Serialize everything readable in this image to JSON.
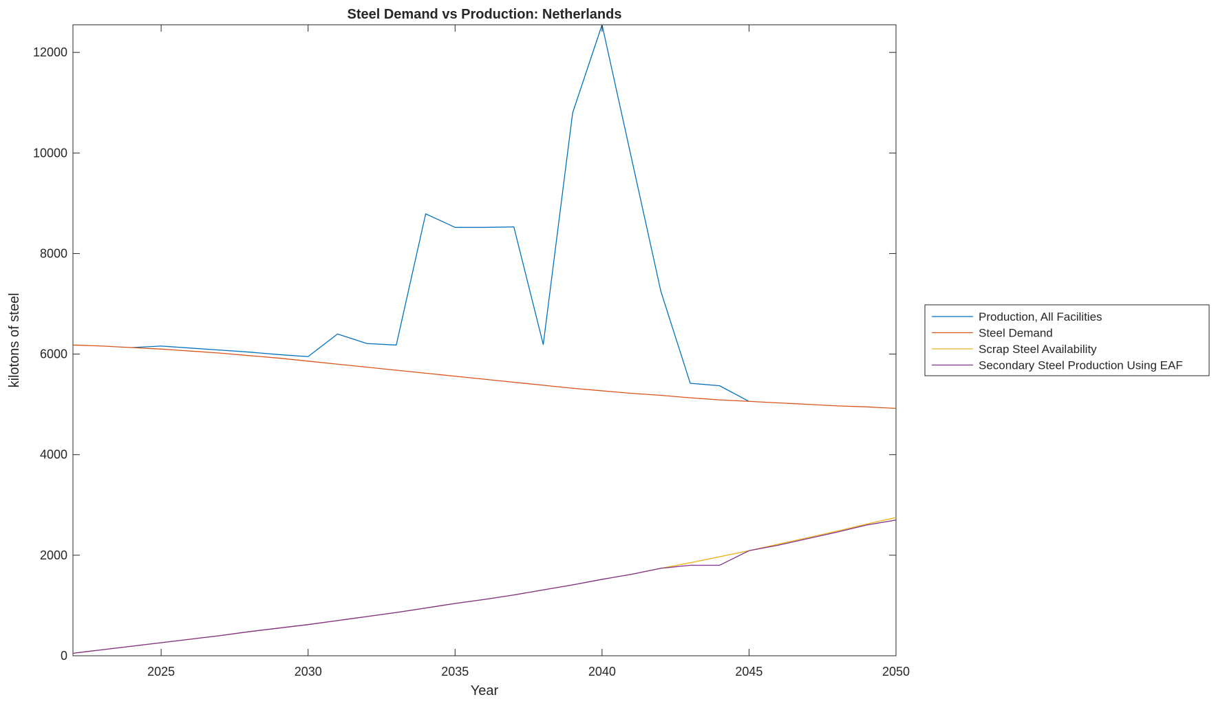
{
  "chart_data": {
    "type": "line",
    "title": "Steel Demand vs Production: Netherlands",
    "xlabel": "Year",
    "ylabel": "kilotons of steel",
    "xlim": [
      2022,
      2050
    ],
    "ylim": [
      0,
      12550
    ],
    "xticks": [
      2025,
      2030,
      2035,
      2040,
      2045,
      2050
    ],
    "yticks": [
      0,
      2000,
      4000,
      6000,
      8000,
      10000,
      12000
    ],
    "grid": false,
    "legend_position": "outside-right",
    "x": [
      2022,
      2023,
      2024,
      2025,
      2026,
      2027,
      2028,
      2029,
      2030,
      2031,
      2032,
      2033,
      2034,
      2035,
      2036,
      2037,
      2038,
      2039,
      2040,
      2041,
      2042,
      2043,
      2044,
      2045,
      2046,
      2047,
      2048,
      2049,
      2050
    ],
    "series": [
      {
        "name": "Production, All Facilities",
        "color": "#0072BD",
        "x": [
          2024,
          2025,
          2026,
          2027,
          2028,
          2029,
          2030,
          2031,
          2032,
          2033,
          2034,
          2035,
          2036,
          2037,
          2038,
          2039,
          2040,
          2041,
          2042,
          2043,
          2044,
          2045
        ],
        "values": [
          6130,
          6160,
          6120,
          6080,
          6040,
          5990,
          5950,
          6400,
          6210,
          6180,
          8790,
          8520,
          8520,
          8530,
          6190,
          10800,
          12550,
          9900,
          7250,
          5420,
          5370,
          5060
        ]
      },
      {
        "name": "Steel Demand",
        "color": "#D95319",
        "values": [
          6180,
          6160,
          6130,
          6100,
          6060,
          6020,
          5970,
          5920,
          5860,
          5800,
          5740,
          5680,
          5620,
          5560,
          5500,
          5440,
          5380,
          5320,
          5270,
          5220,
          5180,
          5130,
          5090,
          5060,
          5030,
          5000,
          4970,
          4950,
          4920
        ]
      },
      {
        "name": "Scrap Steel Availability",
        "color": "#EDB120",
        "values": [
          50,
          120,
          190,
          260,
          330,
          400,
          480,
          550,
          620,
          700,
          780,
          860,
          950,
          1040,
          1120,
          1210,
          1310,
          1410,
          1520,
          1620,
          1740,
          1850,
          1970,
          2090,
          2220,
          2350,
          2480,
          2620,
          2750
        ]
      },
      {
        "name": "Secondary Steel Production Using EAF",
        "color": "#7E2F8E",
        "values": [
          50,
          120,
          190,
          260,
          330,
          400,
          480,
          550,
          620,
          700,
          780,
          860,
          950,
          1040,
          1120,
          1210,
          1310,
          1410,
          1520,
          1620,
          1740,
          1800,
          1800,
          2090,
          2200,
          2330,
          2460,
          2600,
          2700
        ]
      }
    ]
  }
}
